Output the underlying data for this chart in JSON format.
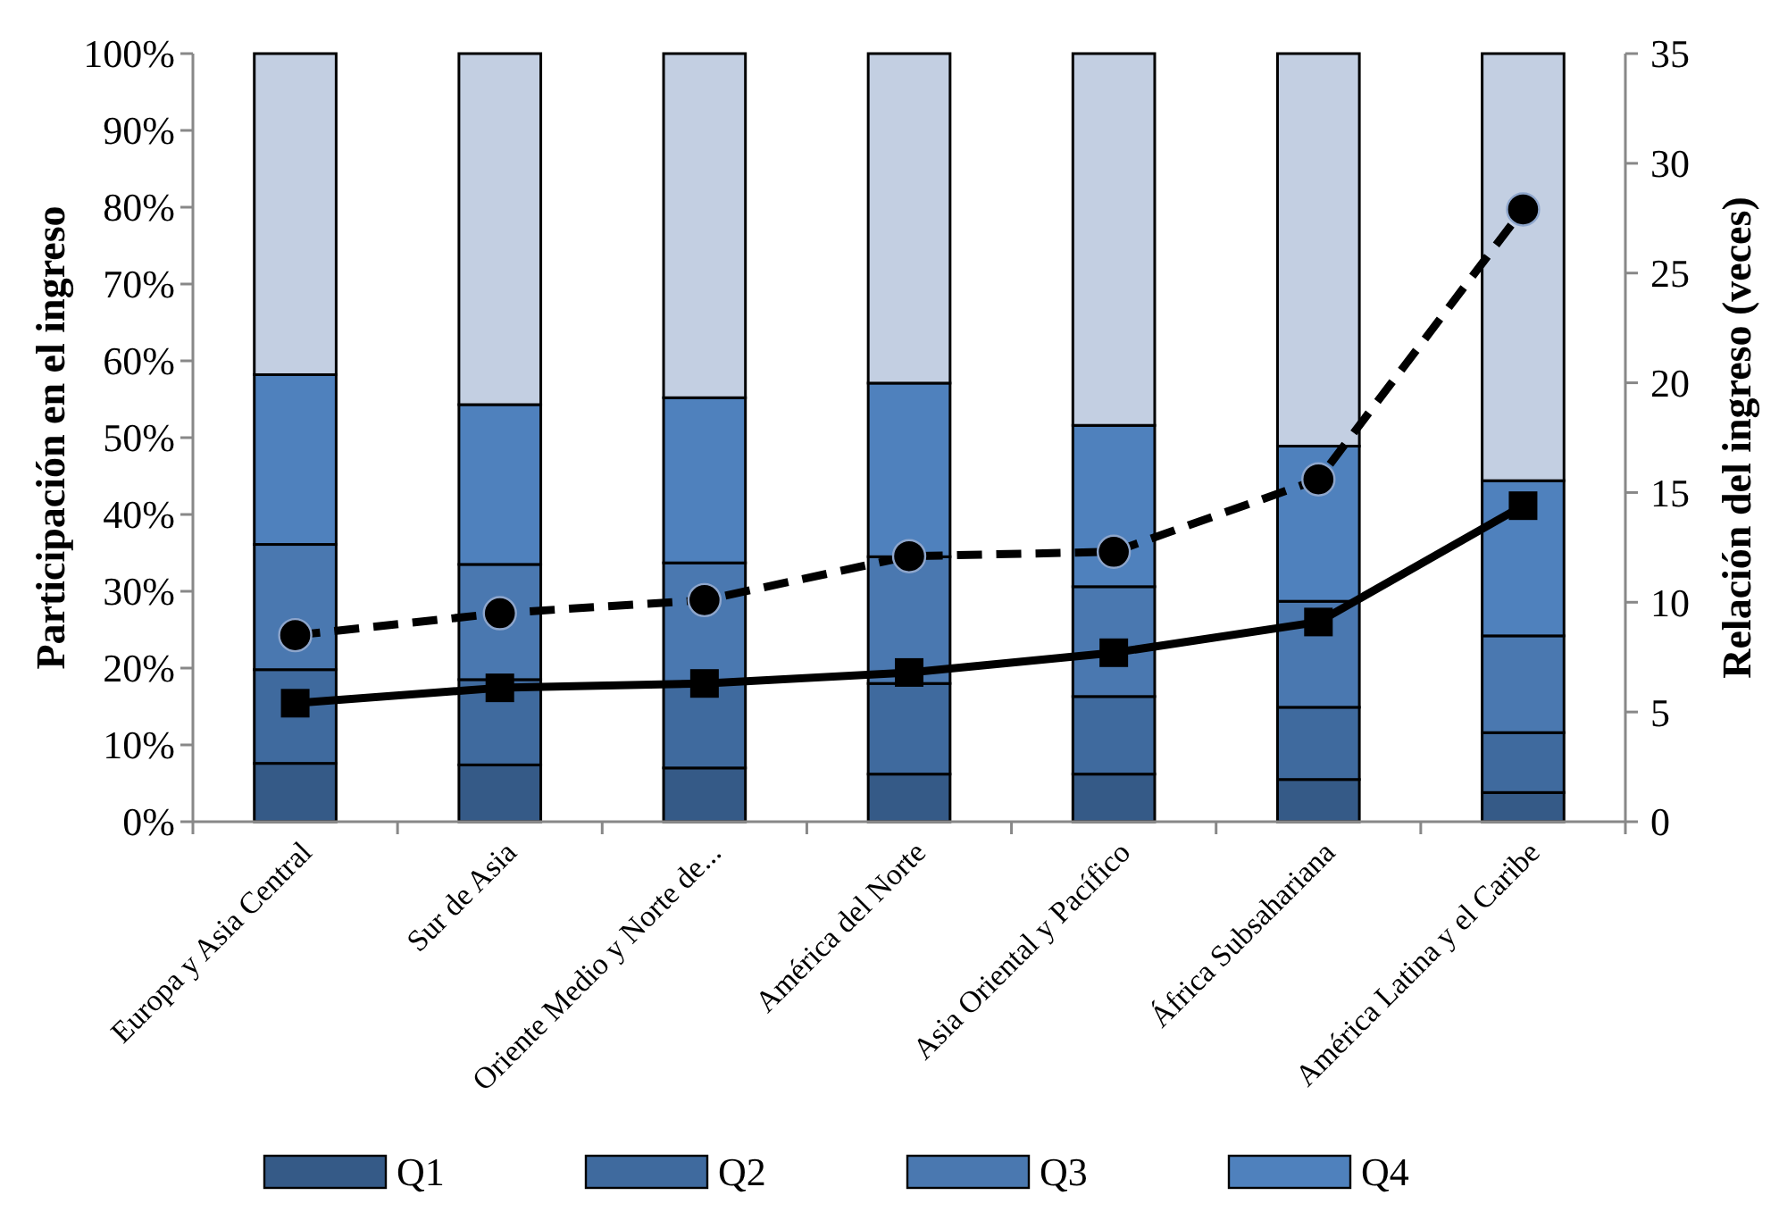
{
  "chart_data": {
    "type": "bar",
    "stacked": true,
    "ylabel": "Participación en el ingreso",
    "y2label": "Relación del ingreso (veces)",
    "categories": [
      "Europa y Asia Central",
      "Sur de Asia",
      "Oriente Medio y Norte de...",
      "América del Norte",
      "Asia Oriental y Pacífico",
      "África Subsahariana",
      "América Latina y el Caribe"
    ],
    "series": [
      {
        "name": "Q1",
        "color": "#355a87",
        "values": [
          7.6,
          7.4,
          7.0,
          6.2,
          6.2,
          5.5,
          3.8
        ]
      },
      {
        "name": "Q2",
        "color": "#3f6a9e",
        "values": [
          12.2,
          11.1,
          11.0,
          11.8,
          10.1,
          9.4,
          7.8
        ]
      },
      {
        "name": "Q3",
        "color": "#4a78b0",
        "values": [
          16.3,
          15.0,
          15.7,
          16.5,
          14.3,
          13.8,
          12.6
        ]
      },
      {
        "name": "Q4",
        "color": "#4f81bd",
        "values": [
          22.1,
          20.8,
          21.5,
          22.6,
          21.0,
          20.2,
          20.2
        ]
      },
      {
        "color": "#c3cfe2",
        "values": [
          41.8,
          45.7,
          44.8,
          42.9,
          48.4,
          51.1,
          55.6
        ]
      },
      {
        "type": "line",
        "axis": "y2",
        "color": "#000000",
        "marker": "square",
        "line_style": "solid",
        "values": [
          5.4,
          6.1,
          6.3,
          6.8,
          7.7,
          9.1,
          14.4
        ]
      },
      {
        "type": "line",
        "axis": "y2",
        "color": "#000000",
        "marker": "circle",
        "line_style": "dashed",
        "values": [
          8.5,
          9.5,
          10.1,
          12.1,
          12.3,
          15.6,
          27.9
        ]
      }
    ],
    "ylim": [
      0,
      100
    ],
    "yticks": [
      {
        "value": 0,
        "label": "0%"
      },
      {
        "value": 10,
        "label": "10%"
      },
      {
        "value": 20,
        "label": "20%"
      },
      {
        "value": 30,
        "label": "30%"
      },
      {
        "value": 40,
        "label": "40%"
      },
      {
        "value": 50,
        "label": "50%"
      },
      {
        "value": 60,
        "label": "60%"
      },
      {
        "value": 70,
        "label": "70%"
      },
      {
        "value": 80,
        "label": "80%"
      },
      {
        "value": 90,
        "label": "90%"
      },
      {
        "value": 100,
        "label": "100%"
      }
    ],
    "y2lim": [
      0,
      35
    ],
    "y2ticks": [
      0,
      5,
      10,
      15,
      20,
      25,
      30,
      35
    ],
    "grid": false,
    "legend": "bottom"
  }
}
